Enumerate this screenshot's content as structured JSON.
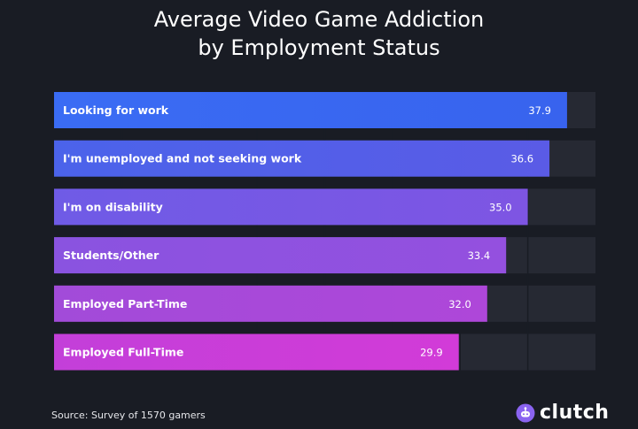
{
  "header": {
    "title_line1": "Average Video Game Addiction",
    "title_line2": "by Employment Status"
  },
  "footer": {
    "source": "Source: Survey of 1570 gamers",
    "logo_text": "clutch"
  },
  "colors": {
    "background": "#191c24",
    "track": "#262933",
    "bar_start": [
      "#3a6cf4",
      "#4b63ea",
      "#6f5be6",
      "#8a53e0",
      "#a24bd9",
      "#c33fd9"
    ],
    "bar_end": [
      "#3863ee",
      "#5a5be6",
      "#7e55e3",
      "#9450df",
      "#ae47d9",
      "#d23bd8"
    ]
  },
  "chart_data": {
    "type": "bar",
    "orientation": "horizontal",
    "title": "Average Video Game Addiction by Employment Status",
    "xlim": [
      0,
      40
    ],
    "grid": true,
    "categories": [
      "Looking for work",
      "I'm unemployed and not seeking work",
      "I'm on disability",
      "Students/Other",
      "Employed Part-Time",
      "Employed Full-Time"
    ],
    "values": [
      37.9,
      36.6,
      35.0,
      33.4,
      32.0,
      29.9
    ],
    "value_labels": [
      "37.9",
      "36.6",
      "35.0",
      "33.4",
      "32.0",
      "29.9"
    ]
  }
}
